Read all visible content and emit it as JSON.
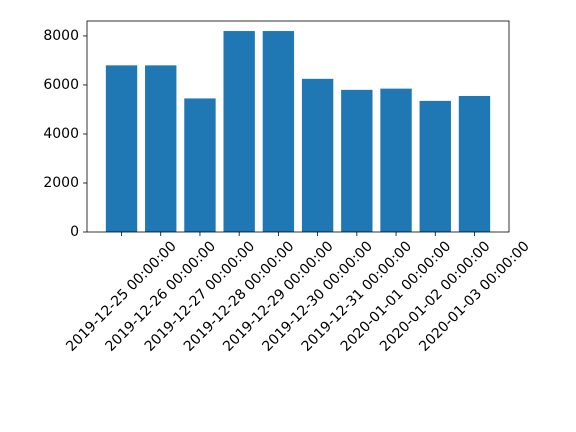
{
  "chart_data": {
    "type": "bar",
    "categories": [
      "2019-12-25 00:00:00",
      "2019-12-26 00:00:00",
      "2019-12-27 00:00:00",
      "2019-12-28 00:00:00",
      "2019-12-29 00:00:00",
      "2019-12-30 00:00:00",
      "2019-12-31 00:00:00",
      "2020-01-01 00:00:00",
      "2020-01-02 00:00:00",
      "2020-01-03 00:00:00"
    ],
    "values": [
      6800,
      6800,
      5450,
      8200,
      8200,
      6250,
      5800,
      5850,
      5350,
      5550
    ],
    "color": "#1f77b4",
    "ylim": [
      0,
      8610
    ],
    "yticks": [
      0,
      2000,
      4000,
      6000,
      8000
    ],
    "grid": false
  }
}
